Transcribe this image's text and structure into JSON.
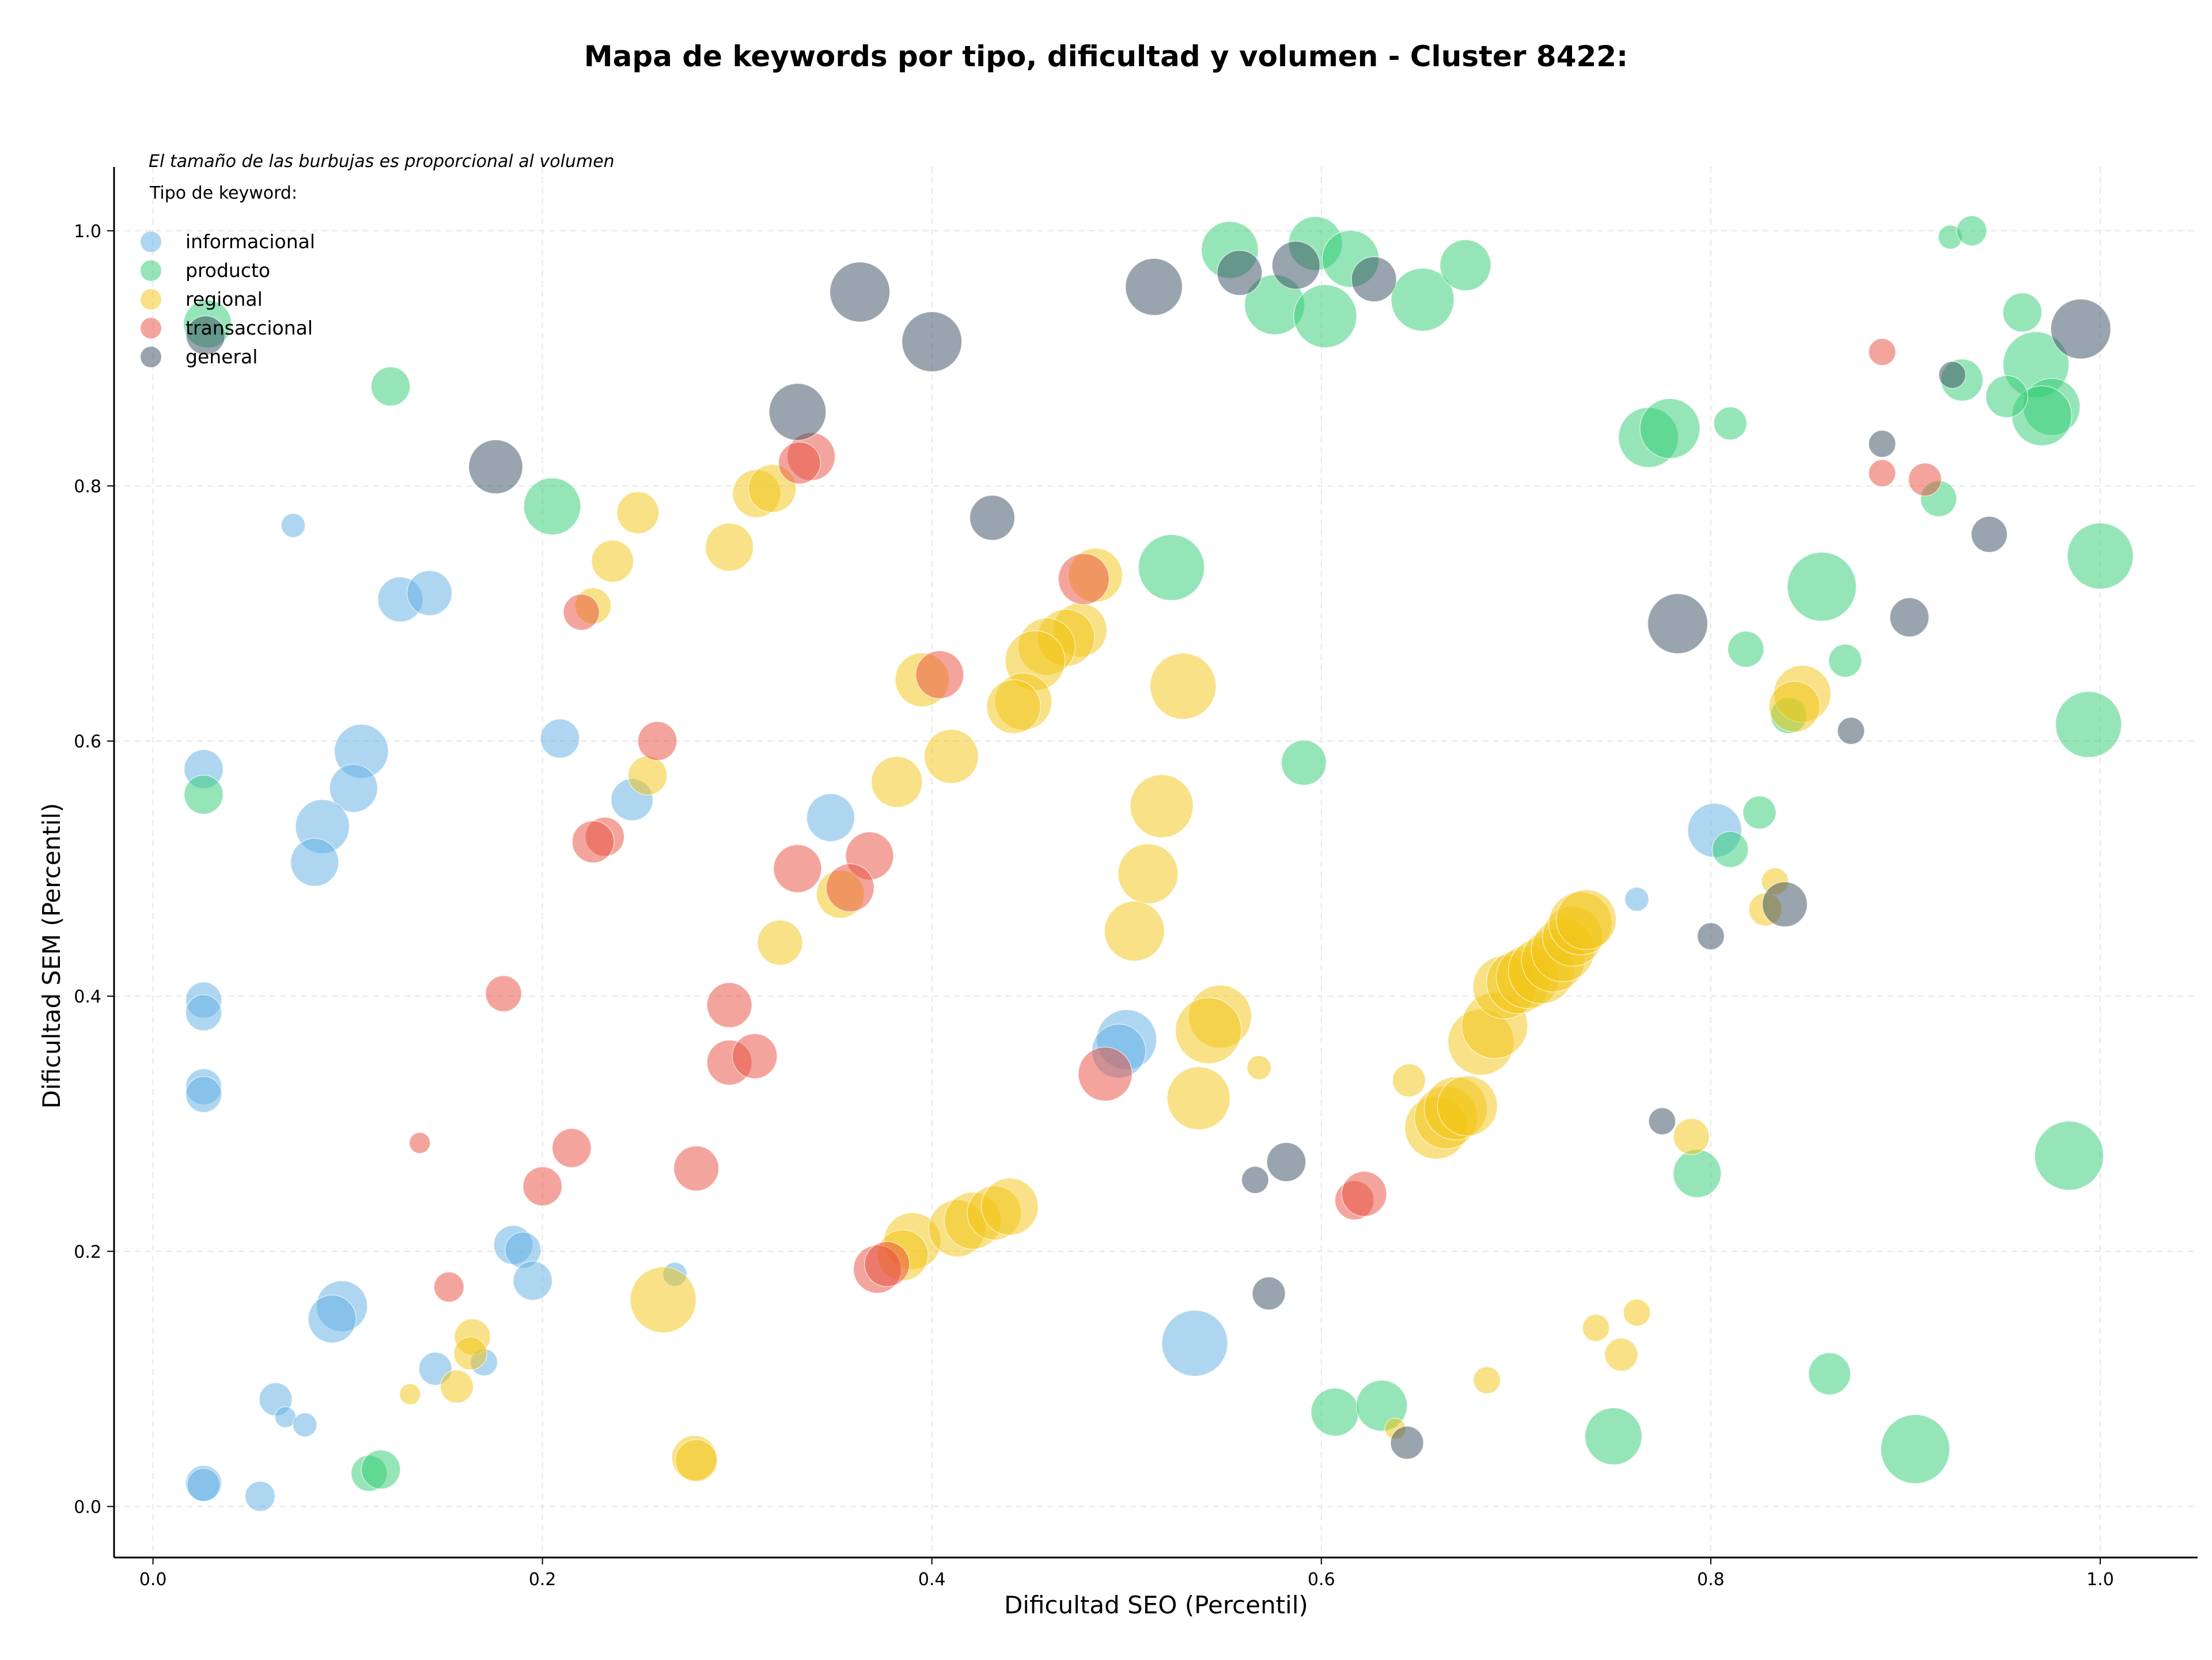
{
  "chart_data": {
    "type": "scatter",
    "title": "Mapa de keywords por tipo, dificultad y volumen - Cluster 8422:",
    "xlabel": "Dificultad SEO (Percentil)",
    "ylabel": "Dificultad SEM (Percentil)",
    "xlim": [
      -0.02,
      1.05
    ],
    "ylim": [
      -0.04,
      1.05
    ],
    "x_ticks": [
      0.0,
      0.2,
      0.4,
      0.6,
      0.8,
      1.0
    ],
    "y_ticks": [
      0.0,
      0.2,
      0.4,
      0.6,
      0.8,
      1.0
    ],
    "x_tick_labels": [
      "0.0",
      "0.2",
      "0.4",
      "0.6",
      "0.8",
      "1.0"
    ],
    "y_tick_labels": [
      "0.0",
      "0.2",
      "0.4",
      "0.6",
      "0.8",
      "1.0"
    ],
    "grid": true,
    "grid_style": "dashed",
    "legend_position": "top-left",
    "legend_title": "Tipo de keyword:",
    "size_note": "El tamaño de las burbujas es proporcional al volumen",
    "point_format": [
      "x",
      "y",
      "relative bubble size"
    ],
    "series": [
      {
        "name": "informacional",
        "color": "#5dade2",
        "points": [
          [
            0.072,
            0.769,
            0.8
          ],
          [
            0.127,
            0.711,
            1.5
          ],
          [
            0.142,
            0.716,
            1.5
          ],
          [
            0.026,
            0.578,
            1.3
          ],
          [
            0.107,
            0.592,
            1.8
          ],
          [
            0.103,
            0.563,
            1.6
          ],
          [
            0.087,
            0.533,
            1.8
          ],
          [
            0.083,
            0.505,
            1.6
          ],
          [
            0.209,
            0.602,
            1.3
          ],
          [
            0.246,
            0.554,
            1.4
          ],
          [
            0.348,
            0.54,
            1.6
          ],
          [
            0.026,
            0.397,
            1.2
          ],
          [
            0.026,
            0.387,
            1.2
          ],
          [
            0.026,
            0.329,
            1.2
          ],
          [
            0.026,
            0.323,
            1.2
          ],
          [
            0.5,
            0.366,
            2.0
          ],
          [
            0.496,
            0.357,
            1.8
          ],
          [
            0.185,
            0.205,
            1.3
          ],
          [
            0.19,
            0.201,
            1.2
          ],
          [
            0.195,
            0.177,
            1.3
          ],
          [
            0.097,
            0.157,
            1.7
          ],
          [
            0.092,
            0.147,
            1.6
          ],
          [
            0.268,
            0.182,
            0.8
          ],
          [
            0.145,
            0.108,
            1.1
          ],
          [
            0.17,
            0.113,
            0.9
          ],
          [
            0.063,
            0.084,
            1.1
          ],
          [
            0.068,
            0.07,
            0.7
          ],
          [
            0.078,
            0.064,
            0.8
          ],
          [
            0.026,
            0.018,
            1.2
          ],
          [
            0.026,
            0.017,
            1.1
          ],
          [
            0.055,
            0.008,
            1.0
          ],
          [
            0.535,
            0.128,
            2.2
          ],
          [
            0.802,
            0.53,
            1.8
          ],
          [
            0.762,
            0.476,
            0.8
          ]
        ]
      },
      {
        "name": "producto",
        "color": "#2ecc71",
        "points": [
          [
            0.028,
            0.927,
            1.6
          ],
          [
            0.122,
            0.878,
            1.3
          ],
          [
            0.205,
            0.784,
            1.9
          ],
          [
            0.026,
            0.558,
            1.3
          ],
          [
            0.553,
            0.985,
            1.9
          ],
          [
            0.597,
            0.99,
            1.8
          ],
          [
            0.615,
            0.978,
            1.9
          ],
          [
            0.576,
            0.942,
            2.0
          ],
          [
            0.602,
            0.933,
            2.1
          ],
          [
            0.652,
            0.946,
            2.1
          ],
          [
            0.674,
            0.973,
            1.7
          ],
          [
            0.523,
            0.736,
            2.2
          ],
          [
            0.591,
            0.583,
            1.5
          ],
          [
            0.768,
            0.838,
            2.0
          ],
          [
            0.779,
            0.845,
            2.0
          ],
          [
            0.81,
            0.849,
            1.1
          ],
          [
            0.857,
            0.721,
            2.3
          ],
          [
            0.818,
            0.672,
            1.2
          ],
          [
            0.869,
            0.663,
            1.1
          ],
          [
            0.825,
            0.544,
            1.1
          ],
          [
            0.81,
            0.515,
            1.2
          ],
          [
            0.84,
            0.62,
            1.2
          ],
          [
            0.923,
            0.995,
            0.8
          ],
          [
            0.934,
            1.0,
            1.0
          ],
          [
            0.929,
            0.883,
            1.4
          ],
          [
            0.96,
            0.936,
            1.3
          ],
          [
            0.967,
            0.895,
            2.2
          ],
          [
            0.975,
            0.862,
            1.9
          ],
          [
            0.97,
            0.855,
            2.0
          ],
          [
            0.952,
            0.87,
            1.4
          ],
          [
            0.917,
            0.79,
            1.2
          ],
          [
            1.0,
            0.745,
            2.2
          ],
          [
            0.994,
            0.613,
            2.2
          ],
          [
            0.793,
            0.261,
            1.6
          ],
          [
            0.984,
            0.275,
            2.3
          ],
          [
            0.861,
            0.104,
            1.4
          ],
          [
            0.905,
            0.045,
            2.3
          ],
          [
            0.75,
            0.055,
            1.9
          ],
          [
            0.607,
            0.074,
            1.6
          ],
          [
            0.631,
            0.079,
            1.7
          ],
          [
            0.111,
            0.026,
            1.2
          ],
          [
            0.117,
            0.029,
            1.3
          ]
        ]
      },
      {
        "name": "regional",
        "color": "#f1c40f",
        "points": [
          [
            0.249,
            0.779,
            1.4
          ],
          [
            0.236,
            0.741,
            1.4
          ],
          [
            0.226,
            0.706,
            1.2
          ],
          [
            0.31,
            0.794,
            1.6
          ],
          [
            0.318,
            0.798,
            1.6
          ],
          [
            0.296,
            0.752,
            1.6
          ],
          [
            0.484,
            0.73,
            1.8
          ],
          [
            0.476,
            0.687,
            1.8
          ],
          [
            0.469,
            0.681,
            1.9
          ],
          [
            0.459,
            0.674,
            1.9
          ],
          [
            0.453,
            0.663,
            2.0
          ],
          [
            0.447,
            0.631,
            1.9
          ],
          [
            0.442,
            0.627,
            1.8
          ],
          [
            0.395,
            0.648,
            1.8
          ],
          [
            0.41,
            0.588,
            1.8
          ],
          [
            0.382,
            0.568,
            1.7
          ],
          [
            0.529,
            0.643,
            2.2
          ],
          [
            0.518,
            0.549,
            2.1
          ],
          [
            0.511,
            0.496,
            2.0
          ],
          [
            0.504,
            0.451,
            2.0
          ],
          [
            0.322,
            0.442,
            1.5
          ],
          [
            0.353,
            0.48,
            1.6
          ],
          [
            0.254,
            0.573,
            1.3
          ],
          [
            0.548,
            0.384,
            2.1
          ],
          [
            0.542,
            0.373,
            2.2
          ],
          [
            0.537,
            0.32,
            2.1
          ],
          [
            0.568,
            0.344,
            0.8
          ],
          [
            0.645,
            0.334,
            1.1
          ],
          [
            0.659,
            0.297,
            2.1
          ],
          [
            0.664,
            0.305,
            2.1
          ],
          [
            0.669,
            0.312,
            2.1
          ],
          [
            0.675,
            0.314,
            2.0
          ],
          [
            0.682,
            0.364,
            2.2
          ],
          [
            0.689,
            0.377,
            2.2
          ],
          [
            0.694,
            0.407,
            2.1
          ],
          [
            0.701,
            0.411,
            2.1
          ],
          [
            0.706,
            0.415,
            2.1
          ],
          [
            0.713,
            0.42,
            2.2
          ],
          [
            0.719,
            0.428,
            2.1
          ],
          [
            0.724,
            0.436,
            2.1
          ],
          [
            0.729,
            0.447,
            2.0
          ],
          [
            0.733,
            0.457,
            2.1
          ],
          [
            0.736,
            0.46,
            2.0
          ],
          [
            0.847,
            0.637,
            1.9
          ],
          [
            0.843,
            0.627,
            1.7
          ],
          [
            0.828,
            0.468,
            1.1
          ],
          [
            0.833,
            0.49,
            0.9
          ],
          [
            0.79,
            0.29,
            1.2
          ],
          [
            0.39,
            0.208,
            1.9
          ],
          [
            0.385,
            0.197,
            1.7
          ],
          [
            0.413,
            0.218,
            1.9
          ],
          [
            0.421,
            0.224,
            1.9
          ],
          [
            0.432,
            0.23,
            1.8
          ],
          [
            0.44,
            0.235,
            1.9
          ],
          [
            0.262,
            0.162,
            2.2
          ],
          [
            0.164,
            0.133,
            1.2
          ],
          [
            0.163,
            0.12,
            1.1
          ],
          [
            0.156,
            0.094,
            1.1
          ],
          [
            0.132,
            0.088,
            0.7
          ],
          [
            0.278,
            0.038,
            1.5
          ],
          [
            0.279,
            0.036,
            1.4
          ],
          [
            0.685,
            0.099,
            0.9
          ],
          [
            0.741,
            0.14,
            0.9
          ],
          [
            0.754,
            0.119,
            1.1
          ],
          [
            0.762,
            0.152,
            0.9
          ],
          [
            0.638,
            0.061,
            0.7
          ]
        ]
      },
      {
        "name": "transaccional",
        "color": "#e74c3c",
        "points": [
          [
            0.338,
            0.823,
            1.6
          ],
          [
            0.332,
            0.818,
            1.4
          ],
          [
            0.22,
            0.701,
            1.2
          ],
          [
            0.478,
            0.727,
            1.7
          ],
          [
            0.404,
            0.652,
            1.6
          ],
          [
            0.259,
            0.6,
            1.3
          ],
          [
            0.368,
            0.51,
            1.6
          ],
          [
            0.331,
            0.5,
            1.6
          ],
          [
            0.358,
            0.485,
            1.6
          ],
          [
            0.232,
            0.525,
            1.3
          ],
          [
            0.226,
            0.521,
            1.4
          ],
          [
            0.18,
            0.402,
            1.2
          ],
          [
            0.296,
            0.393,
            1.5
          ],
          [
            0.296,
            0.348,
            1.5
          ],
          [
            0.309,
            0.353,
            1.5
          ],
          [
            0.489,
            0.339,
            1.8
          ],
          [
            0.137,
            0.285,
            0.7
          ],
          [
            0.215,
            0.281,
            1.3
          ],
          [
            0.2,
            0.251,
            1.3
          ],
          [
            0.279,
            0.265,
            1.5
          ],
          [
            0.152,
            0.172,
            1.0
          ],
          [
            0.372,
            0.186,
            1.6
          ],
          [
            0.377,
            0.19,
            1.5
          ],
          [
            0.617,
            0.24,
            1.3
          ],
          [
            0.622,
            0.245,
            1.5
          ],
          [
            0.888,
            0.905,
            0.9
          ],
          [
            0.888,
            0.81,
            0.9
          ],
          [
            0.91,
            0.805,
            1.1
          ]
        ]
      },
      {
        "name": "general",
        "color": "#34495e",
        "points": [
          [
            0.027,
            0.918,
            1.3
          ],
          [
            0.176,
            0.815,
            1.8
          ],
          [
            0.363,
            0.952,
            2.0
          ],
          [
            0.4,
            0.913,
            2.0
          ],
          [
            0.331,
            0.858,
            1.9
          ],
          [
            0.431,
            0.775,
            1.5
          ],
          [
            0.514,
            0.956,
            1.9
          ],
          [
            0.558,
            0.967,
            1.5
          ],
          [
            0.587,
            0.973,
            1.6
          ],
          [
            0.627,
            0.962,
            1.5
          ],
          [
            0.783,
            0.692,
            2.0
          ],
          [
            0.902,
            0.697,
            1.3
          ],
          [
            0.872,
            0.608,
            0.9
          ],
          [
            0.924,
            0.887,
            0.9
          ],
          [
            0.888,
            0.833,
            0.9
          ],
          [
            0.943,
            0.762,
            1.2
          ],
          [
            0.99,
            0.923,
            2.0
          ],
          [
            0.838,
            0.472,
            1.5
          ],
          [
            0.8,
            0.447,
            0.9
          ],
          [
            0.775,
            0.302,
            0.9
          ],
          [
            0.582,
            0.27,
            1.3
          ],
          [
            0.566,
            0.256,
            0.9
          ],
          [
            0.573,
            0.167,
            1.1
          ],
          [
            0.644,
            0.05,
            1.1
          ]
        ]
      }
    ]
  }
}
